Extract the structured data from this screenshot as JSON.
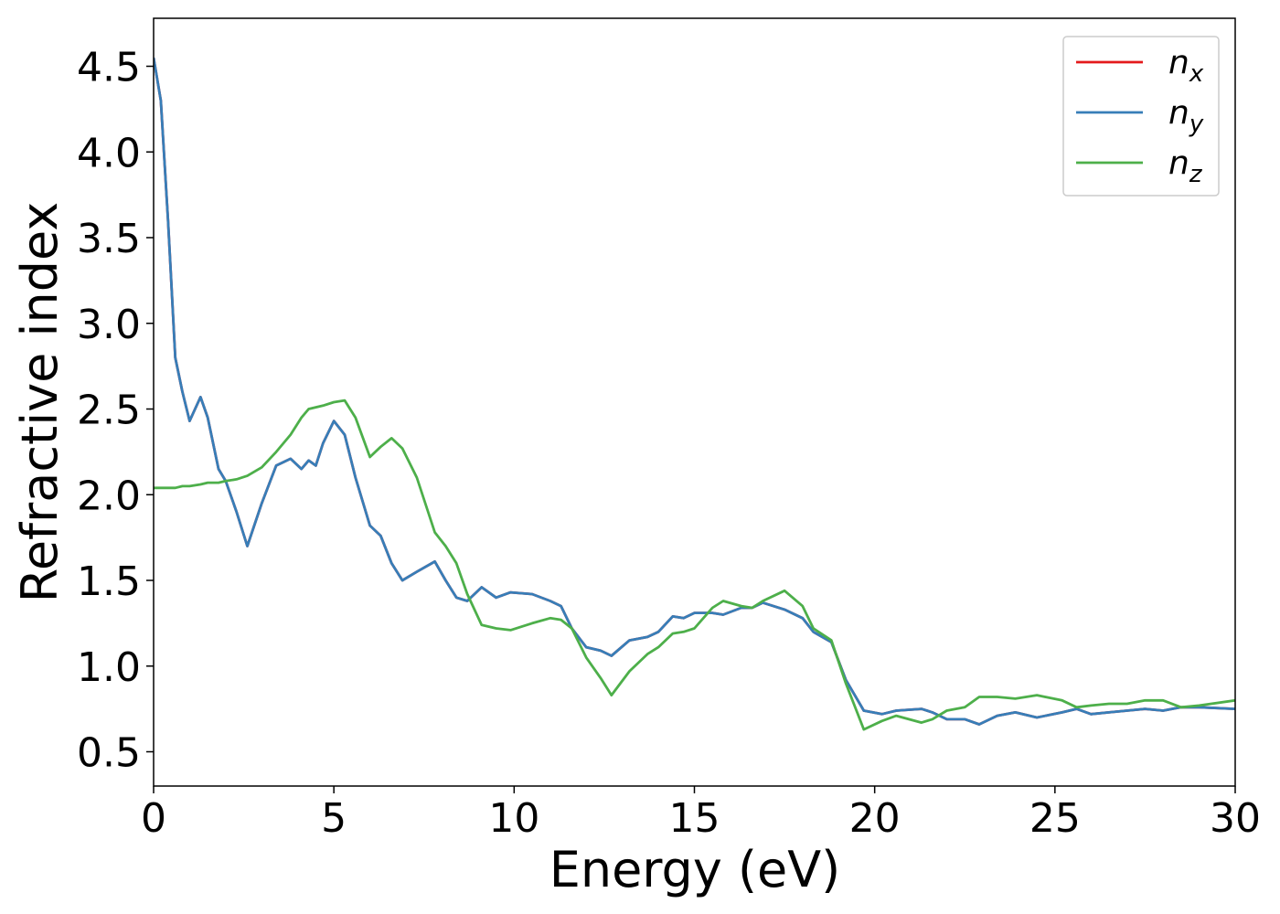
{
  "chart_data": {
    "type": "line",
    "xlabel": "Energy (eV)",
    "ylabel": "Refractive index",
    "xlim": [
      0,
      30
    ],
    "ylim": [
      0.3,
      4.78
    ],
    "xticks": [
      0,
      5,
      10,
      15,
      20,
      25,
      30
    ],
    "yticks": [
      0.5,
      {
        "value": 1,
        "label": "1.0"
      },
      1.5,
      {
        "value": 2,
        "label": "2.0"
      },
      2.5,
      {
        "value": 3,
        "label": "3.0"
      },
      3.5,
      {
        "value": 4,
        "label": "4.0"
      },
      4.5
    ],
    "legend": "upper right",
    "x": [
      0,
      0.2,
      0.4,
      0.6,
      0.8,
      1.0,
      1.3,
      1.5,
      1.8,
      2.0,
      2.3,
      2.6,
      3.0,
      3.4,
      3.8,
      4.1,
      4.3,
      4.5,
      4.7,
      5.0,
      5.3,
      5.6,
      6.0,
      6.3,
      6.6,
      6.9,
      7.3,
      7.8,
      8.1,
      8.4,
      8.7,
      9.1,
      9.5,
      9.9,
      10.5,
      11.0,
      11.3,
      11.6,
      12.0,
      12.4,
      12.7,
      13.2,
      13.7,
      14.0,
      14.4,
      14.7,
      15.0,
      15.5,
      15.8,
      16.3,
      16.6,
      16.9,
      17.5,
      18.0,
      18.3,
      18.8,
      19.2,
      19.7,
      20.2,
      20.6,
      21.3,
      21.6,
      22.0,
      22.5,
      22.9,
      23.4,
      23.9,
      24.5,
      25.2,
      25.6,
      26.0,
      26.5,
      27.0,
      27.5,
      28.0,
      28.5,
      29.0,
      30.0
    ],
    "series": [
      {
        "name": "n",
        "subscript": "x",
        "color": "#e41a1c",
        "values": [
          4.55,
          4.3,
          3.6,
          2.8,
          2.6,
          2.43,
          2.57,
          2.45,
          2.15,
          2.08,
          1.9,
          1.7,
          1.95,
          2.17,
          2.21,
          2.15,
          2.2,
          2.17,
          2.3,
          2.43,
          2.35,
          2.1,
          1.82,
          1.76,
          1.6,
          1.5,
          1.55,
          1.61,
          1.5,
          1.4,
          1.38,
          1.46,
          1.4,
          1.43,
          1.42,
          1.38,
          1.35,
          1.22,
          1.11,
          1.09,
          1.06,
          1.15,
          1.17,
          1.2,
          1.29,
          1.28,
          1.31,
          1.31,
          1.3,
          1.34,
          1.34,
          1.37,
          1.33,
          1.28,
          1.2,
          1.14,
          0.92,
          0.74,
          0.72,
          0.74,
          0.75,
          0.73,
          0.69,
          0.69,
          0.66,
          0.71,
          0.73,
          0.7,
          0.73,
          0.75,
          0.72,
          0.73,
          0.74,
          0.75,
          0.74,
          0.76,
          0.76,
          0.75
        ]
      },
      {
        "name": "n",
        "subscript": "y",
        "color": "#377eb8",
        "values": [
          4.55,
          4.3,
          3.6,
          2.8,
          2.6,
          2.43,
          2.57,
          2.45,
          2.15,
          2.08,
          1.9,
          1.7,
          1.95,
          2.17,
          2.21,
          2.15,
          2.2,
          2.17,
          2.3,
          2.43,
          2.35,
          2.1,
          1.82,
          1.76,
          1.6,
          1.5,
          1.55,
          1.61,
          1.5,
          1.4,
          1.38,
          1.46,
          1.4,
          1.43,
          1.42,
          1.38,
          1.35,
          1.22,
          1.11,
          1.09,
          1.06,
          1.15,
          1.17,
          1.2,
          1.29,
          1.28,
          1.31,
          1.31,
          1.3,
          1.34,
          1.34,
          1.37,
          1.33,
          1.28,
          1.2,
          1.14,
          0.92,
          0.74,
          0.72,
          0.74,
          0.75,
          0.73,
          0.69,
          0.69,
          0.66,
          0.71,
          0.73,
          0.7,
          0.73,
          0.75,
          0.72,
          0.73,
          0.74,
          0.75,
          0.74,
          0.76,
          0.76,
          0.75
        ]
      },
      {
        "name": "n",
        "subscript": "z",
        "color": "#4daf4a",
        "values": [
          2.04,
          2.04,
          2.04,
          2.04,
          2.05,
          2.05,
          2.06,
          2.07,
          2.07,
          2.08,
          2.09,
          2.11,
          2.16,
          2.25,
          2.35,
          2.45,
          2.5,
          2.51,
          2.52,
          2.54,
          2.55,
          2.45,
          2.22,
          2.28,
          2.33,
          2.27,
          2.1,
          1.78,
          1.7,
          1.6,
          1.42,
          1.24,
          1.22,
          1.21,
          1.25,
          1.28,
          1.27,
          1.22,
          1.05,
          0.93,
          0.83,
          0.97,
          1.07,
          1.11,
          1.19,
          1.2,
          1.22,
          1.34,
          1.38,
          1.35,
          1.34,
          1.38,
          1.44,
          1.35,
          1.22,
          1.15,
          0.9,
          0.63,
          0.68,
          0.71,
          0.67,
          0.69,
          0.74,
          0.76,
          0.82,
          0.82,
          0.81,
          0.83,
          0.8,
          0.76,
          0.77,
          0.78,
          0.78,
          0.8,
          0.8,
          0.76,
          0.77,
          0.8
        ]
      }
    ]
  }
}
